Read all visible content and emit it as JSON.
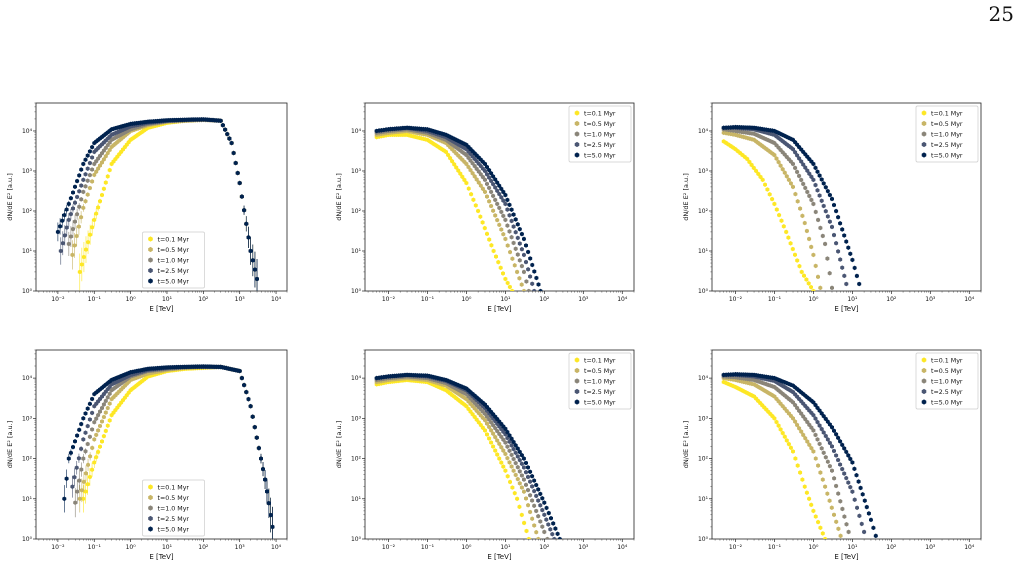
{
  "page_number": "25",
  "style": {
    "series_colors": [
      "#fde725",
      "#c8b566",
      "#8a8579",
      "#4a5673",
      "#00224e"
    ],
    "marker": "hexagon"
  },
  "chart_data": [
    {
      "type": "scatter",
      "xscale": "log",
      "yscale": "log",
      "xlim": [
        0.0025,
        20000
      ],
      "ylim": [
        1,
        50000
      ],
      "xlabel": "E [TeV]",
      "ylabel": "dN/dE E² [a.u.]",
      "xticks": [
        "10⁻²",
        "10⁻¹",
        "10⁰",
        "10¹",
        "10²",
        "10³",
        "10⁴"
      ],
      "yticks": [
        "10⁰",
        "10¹",
        "10²",
        "10³",
        "10⁴"
      ],
      "legend": "lower-center",
      "errorbars_low_energy": true,
      "series": [
        {
          "name": "t=0.1 Myr",
          "x": [
            0.04,
            0.1,
            0.3,
            1,
            3,
            10,
            30,
            100,
            300,
            600,
            1000,
            2000,
            3000
          ],
          "y": [
            3,
            60,
            1500,
            6000,
            12000,
            16000,
            18000,
            19000,
            18000,
            5000,
            500,
            10,
            2
          ]
        },
        {
          "name": "t=0.5 Myr",
          "x": [
            0.025,
            0.05,
            0.1,
            0.3,
            1,
            3,
            10,
            30,
            100,
            300,
            600,
            1000,
            2000,
            3000
          ],
          "y": [
            8,
            120,
            800,
            4000,
            10000,
            14000,
            17000,
            18000,
            19000,
            18000,
            5000,
            500,
            10,
            2
          ]
        },
        {
          "name": "t=1.0 Myr",
          "x": [
            0.02,
            0.05,
            0.1,
            0.3,
            1,
            3,
            10,
            30,
            100,
            300,
            600,
            1000,
            2000,
            3000
          ],
          "y": [
            15,
            300,
            1500,
            6000,
            11000,
            15000,
            17500,
            18500,
            19000,
            18000,
            5000,
            500,
            10,
            2
          ]
        },
        {
          "name": "t=2.5 Myr",
          "x": [
            0.012,
            0.02,
            0.05,
            0.1,
            0.3,
            1,
            3,
            10,
            30,
            100,
            300,
            600,
            1000,
            2000,
            3000
          ],
          "y": [
            10,
            60,
            600,
            3000,
            8000,
            13000,
            16000,
            18000,
            19000,
            19500,
            18000,
            5000,
            500,
            10,
            2
          ]
        },
        {
          "name": "t=5.0 Myr",
          "x": [
            0.01,
            0.02,
            0.05,
            0.1,
            0.3,
            1,
            3,
            10,
            30,
            100,
            300,
            600,
            1000,
            2000,
            3000
          ],
          "y": [
            30,
            150,
            1500,
            5000,
            11000,
            15000,
            17000,
            18500,
            19000,
            19500,
            18000,
            5000,
            500,
            10,
            2
          ]
        }
      ]
    },
    {
      "type": "scatter",
      "xscale": "log",
      "yscale": "log",
      "xlim": [
        0.0025,
        20000
      ],
      "ylim": [
        1,
        50000
      ],
      "xlabel": "E [TeV]",
      "ylabel": "dN/dE E² [a.u.]",
      "xticks": [
        "10⁻²",
        "10⁻¹",
        "10⁰",
        "10¹",
        "10²",
        "10³",
        "10⁴"
      ],
      "yticks": [
        "10⁰",
        "10¹",
        "10²",
        "10³",
        "10⁴"
      ],
      "legend": "upper-right",
      "series": [
        {
          "name": "t=0.1 Myr",
          "x": [
            0.005,
            0.01,
            0.03,
            0.1,
            0.3,
            1,
            2,
            5,
            10,
            15
          ],
          "y": [
            7000,
            8000,
            8000,
            6000,
            3000,
            500,
            100,
            10,
            2,
            1
          ]
        },
        {
          "name": "t=0.5 Myr",
          "x": [
            0.005,
            0.01,
            0.03,
            0.1,
            0.3,
            1,
            3,
            10,
            20,
            30
          ],
          "y": [
            8000,
            9000,
            10000,
            8000,
            5000,
            1500,
            300,
            20,
            3,
            1
          ]
        },
        {
          "name": "t=1.0 Myr",
          "x": [
            0.005,
            0.01,
            0.03,
            0.1,
            0.3,
            1,
            3,
            10,
            30,
            40
          ],
          "y": [
            9000,
            10000,
            11000,
            9000,
            6000,
            2500,
            600,
            60,
            3,
            1
          ]
        },
        {
          "name": "t=2.5 Myr",
          "x": [
            0.005,
            0.01,
            0.03,
            0.1,
            0.3,
            1,
            3,
            10,
            30,
            55
          ],
          "y": [
            10000,
            11000,
            12000,
            10000,
            7000,
            3500,
            1000,
            150,
            8,
            1
          ]
        },
        {
          "name": "t=5.0 Myr",
          "x": [
            0.005,
            0.01,
            0.03,
            0.1,
            0.3,
            1,
            3,
            10,
            30,
            80
          ],
          "y": [
            10000,
            11000,
            12000,
            11000,
            8000,
            4500,
            1500,
            250,
            20,
            1
          ]
        }
      ]
    },
    {
      "type": "scatter",
      "xscale": "log",
      "yscale": "log",
      "xlim": [
        0.0025,
        20000
      ],
      "ylim": [
        1,
        50000
      ],
      "xlabel": "E [TeV]",
      "ylabel": "dN/dE E² [a.u.]",
      "xticks": [
        "10⁻²",
        "10⁻¹",
        "10⁰",
        "10¹",
        "10²",
        "10³",
        "10⁴"
      ],
      "yticks": [
        "10⁰",
        "10¹",
        "10²",
        "10³",
        "10⁴"
      ],
      "legend": "upper-right",
      "series": [
        {
          "name": "t=0.1 Myr",
          "x": [
            0.005,
            0.01,
            0.02,
            0.05,
            0.1,
            0.2,
            0.5,
            1
          ],
          "y": [
            5500,
            3500,
            2000,
            600,
            150,
            30,
            3,
            1
          ]
        },
        {
          "name": "t=0.5 Myr",
          "x": [
            0.005,
            0.01,
            0.03,
            0.1,
            0.3,
            0.6,
            1,
            1.5
          ],
          "y": [
            9000,
            8000,
            6000,
            2500,
            400,
            50,
            8,
            1.2
          ]
        },
        {
          "name": "t=1.0 Myr",
          "x": [
            0.005,
            0.01,
            0.03,
            0.1,
            0.3,
            1,
            2,
            3
          ],
          "y": [
            11000,
            10000,
            8500,
            5000,
            1500,
            150,
            15,
            1.2
          ]
        },
        {
          "name": "t=2.5 Myr",
          "x": [
            0.005,
            0.01,
            0.03,
            0.1,
            0.3,
            1,
            3,
            7
          ],
          "y": [
            12000,
            12000,
            11000,
            8000,
            3500,
            600,
            40,
            1.5
          ]
        },
        {
          "name": "t=5.0 Myr",
          "x": [
            0.005,
            0.01,
            0.03,
            0.1,
            0.3,
            1,
            3,
            10,
            15
          ],
          "y": [
            12000,
            12500,
            12000,
            10000,
            6000,
            1500,
            200,
            6,
            1.5
          ]
        }
      ]
    },
    {
      "type": "scatter",
      "xscale": "log",
      "yscale": "log",
      "xlim": [
        0.0025,
        20000
      ],
      "ylim": [
        1,
        50000
      ],
      "xlabel": "E [TeV]",
      "ylabel": "dN/dE E² [a.u.]",
      "xticks": [
        "10⁻²",
        "10⁻¹",
        "10⁰",
        "10¹",
        "10²",
        "10³",
        "10⁴"
      ],
      "yticks": [
        "10⁰",
        "10¹",
        "10²",
        "10³",
        "10⁴"
      ],
      "legend": "lower-center",
      "errorbars_low_energy": true,
      "series": [
        {
          "name": "t=0.1 Myr",
          "x": [
            0.05,
            0.1,
            0.3,
            1,
            3,
            10,
            30,
            100,
            300,
            1000,
            2000,
            5000,
            8000
          ],
          "y": [
            10,
            80,
            1200,
            5000,
            11000,
            15000,
            17000,
            18000,
            19000,
            15000,
            2000,
            30,
            2
          ]
        },
        {
          "name": "t=0.5 Myr",
          "x": [
            0.04,
            0.1,
            0.3,
            1,
            3,
            10,
            30,
            100,
            300,
            1000,
            2000,
            5000,
            8000
          ],
          "y": [
            10,
            300,
            3000,
            9000,
            13000,
            16000,
            18000,
            19000,
            19000,
            15000,
            2000,
            30,
            2
          ]
        },
        {
          "name": "t=1.0 Myr",
          "x": [
            0.03,
            0.05,
            0.1,
            0.3,
            1,
            3,
            10,
            30,
            100,
            300,
            1000,
            2000,
            5000,
            8000
          ],
          "y": [
            8,
            100,
            800,
            5000,
            11000,
            15000,
            17000,
            18500,
            19000,
            19000,
            15000,
            2000,
            30,
            2
          ]
        },
        {
          "name": "t=2.5 Myr",
          "x": [
            0.025,
            0.05,
            0.1,
            0.3,
            1,
            3,
            10,
            30,
            100,
            300,
            1000,
            2000,
            5000,
            8000
          ],
          "y": [
            20,
            300,
            2000,
            7000,
            12000,
            16000,
            18000,
            19000,
            19000,
            19000,
            15000,
            2000,
            30,
            2
          ]
        },
        {
          "name": "t=5.0 Myr",
          "x": [
            0.015,
            0.02,
            0.05,
            0.1,
            0.3,
            1,
            3,
            10,
            30,
            100,
            300,
            1000,
            2000,
            5000,
            8000
          ],
          "y": [
            10,
            100,
            1000,
            4000,
            9000,
            14000,
            17000,
            18500,
            19000,
            19500,
            19000,
            15000,
            2000,
            30,
            2
          ]
        }
      ]
    },
    {
      "type": "scatter",
      "xscale": "log",
      "yscale": "log",
      "xlim": [
        0.0025,
        20000
      ],
      "ylim": [
        1,
        50000
      ],
      "xlabel": "E [TeV]",
      "ylabel": "dN/dE E² [a.u.]",
      "xticks": [
        "10⁻²",
        "10⁻¹",
        "10⁰",
        "10¹",
        "10²",
        "10³",
        "10⁴"
      ],
      "yticks": [
        "10⁰",
        "10¹",
        "10²",
        "10³",
        "10⁴"
      ],
      "legend": "upper-right",
      "series": [
        {
          "name": "t=0.1 Myr",
          "x": [
            0.005,
            0.01,
            0.03,
            0.1,
            0.3,
            1,
            3,
            10,
            20,
            40
          ],
          "y": [
            7000,
            8000,
            9000,
            8000,
            5000,
            2000,
            500,
            50,
            10,
            1
          ]
        },
        {
          "name": "t=0.5 Myr",
          "x": [
            0.005,
            0.01,
            0.03,
            0.1,
            0.3,
            1,
            3,
            10,
            30,
            70
          ],
          "y": [
            8000,
            9000,
            10000,
            9000,
            6500,
            3000,
            900,
            130,
            15,
            1
          ]
        },
        {
          "name": "t=1.0 Myr",
          "x": [
            0.005,
            0.01,
            0.03,
            0.1,
            0.3,
            1,
            3,
            10,
            30,
            100,
            120
          ],
          "y": [
            9000,
            10000,
            11000,
            10000,
            7500,
            4000,
            1300,
            250,
            30,
            1.5,
            1
          ]
        },
        {
          "name": "t=2.5 Myr",
          "x": [
            0.005,
            0.01,
            0.03,
            0.1,
            0.3,
            1,
            3,
            10,
            30,
            100,
            180
          ],
          "y": [
            10000,
            11000,
            12000,
            11000,
            8500,
            5000,
            1800,
            400,
            60,
            4,
            1
          ]
        },
        {
          "name": "t=5.0 Myr",
          "x": [
            0.005,
            0.01,
            0.03,
            0.1,
            0.3,
            1,
            3,
            10,
            30,
            100,
            250
          ],
          "y": [
            10000,
            11000,
            12000,
            11500,
            9000,
            5500,
            2200,
            550,
            100,
            8,
            1
          ]
        }
      ]
    },
    {
      "type": "scatter",
      "xscale": "log",
      "yscale": "log",
      "xlim": [
        0.0025,
        20000
      ],
      "ylim": [
        1,
        50000
      ],
      "xlabel": "E [TeV]",
      "ylabel": "dN/dE E² [a.u.]",
      "xticks": [
        "10⁻²",
        "10⁻¹",
        "10⁰",
        "10¹",
        "10²",
        "10³",
        "10⁴"
      ],
      "yticks": [
        "10⁰",
        "10¹",
        "10²",
        "10³",
        "10⁴"
      ],
      "legend": "upper-right",
      "series": [
        {
          "name": "t=0.1 Myr",
          "x": [
            0.005,
            0.01,
            0.03,
            0.1,
            0.3,
            0.6,
            1,
            2
          ],
          "y": [
            8000,
            6000,
            3500,
            1000,
            150,
            20,
            5,
            1
          ]
        },
        {
          "name": "t=0.5 Myr",
          "x": [
            0.005,
            0.01,
            0.03,
            0.1,
            0.3,
            1,
            2,
            5
          ],
          "y": [
            10000,
            9000,
            7000,
            3500,
            1000,
            150,
            20,
            1.2
          ]
        },
        {
          "name": "t=1.0 Myr",
          "x": [
            0.005,
            0.01,
            0.03,
            0.1,
            0.3,
            1,
            3,
            8
          ],
          "y": [
            11000,
            10500,
            9000,
            6000,
            2500,
            500,
            50,
            1.5
          ]
        },
        {
          "name": "t=2.5 Myr",
          "x": [
            0.005,
            0.01,
            0.03,
            0.1,
            0.3,
            1,
            3,
            10,
            20
          ],
          "y": [
            12000,
            12000,
            11000,
            8500,
            4500,
            1200,
            200,
            15,
            1.5
          ]
        },
        {
          "name": "t=5.0 Myr",
          "x": [
            0.005,
            0.01,
            0.03,
            0.1,
            0.3,
            1,
            3,
            10,
            30,
            40
          ],
          "y": [
            12000,
            12500,
            12000,
            10000,
            6500,
            2500,
            600,
            80,
            3,
            1.2
          ]
        }
      ]
    }
  ]
}
